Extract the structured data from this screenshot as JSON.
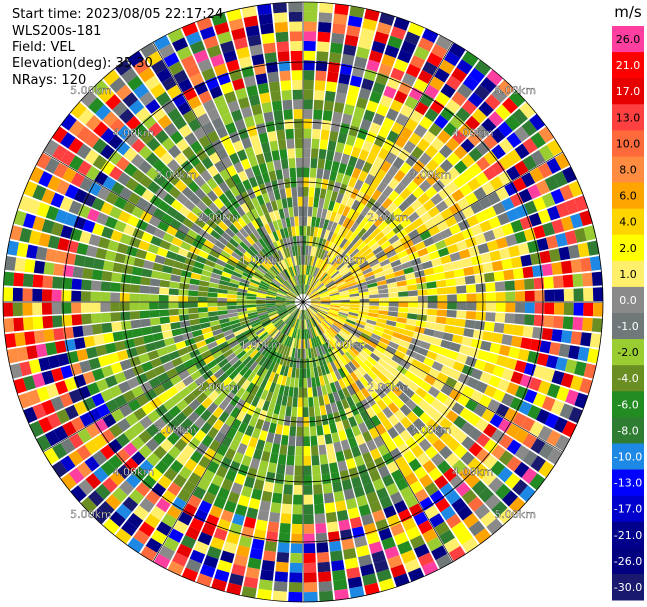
{
  "header": {
    "start_time": "Start time: 2023/08/05 22:17:24",
    "instrument": "WLS200s-181",
    "field": "Field: VEL",
    "elevation": "Elevation(deg): 35.30",
    "nrays": "NRays: 120"
  },
  "chart_data": {
    "type": "heatmap",
    "projection": "polar-ppi",
    "field": "VEL",
    "nrays": 120,
    "range_rings_km": [
      1.0,
      2.0,
      3.0,
      4.0,
      5.0
    ],
    "range_ring_labels": [
      "1.00km",
      "2.00km",
      "3.00km",
      "4.00km",
      "5.00km"
    ],
    "radial_lines": 12,
    "max_range_km": 5.0,
    "colorbar": {
      "unit": "m/s",
      "ticks": [
        "26.0",
        "21.0",
        "17.0",
        "13.0",
        "10.0",
        "8.0",
        "6.0",
        "4.0",
        "2.0",
        "1.0",
        "0.0",
        "-1.0",
        "-2.0",
        "-4.0",
        "-6.0",
        "-8.0",
        "-10.0",
        "-13.0",
        "-17.0",
        "-21.0",
        "-26.0",
        "-30.0"
      ],
      "colors": [
        "#ff3fa0",
        "#ff0000",
        "#e60000",
        "#ff4040",
        "#ff6a3d",
        "#ff8c40",
        "#ffa500",
        "#ffd500",
        "#ffff00",
        "#ffef6a",
        "#8a8a8a",
        "#70787a",
        "#9acd32",
        "#6b8e23",
        "#228b22",
        "#2e7d32",
        "#1e88e5",
        "#0000ff",
        "#0000cd",
        "#00008b",
        "#000080",
        "#191970"
      ]
    }
  }
}
